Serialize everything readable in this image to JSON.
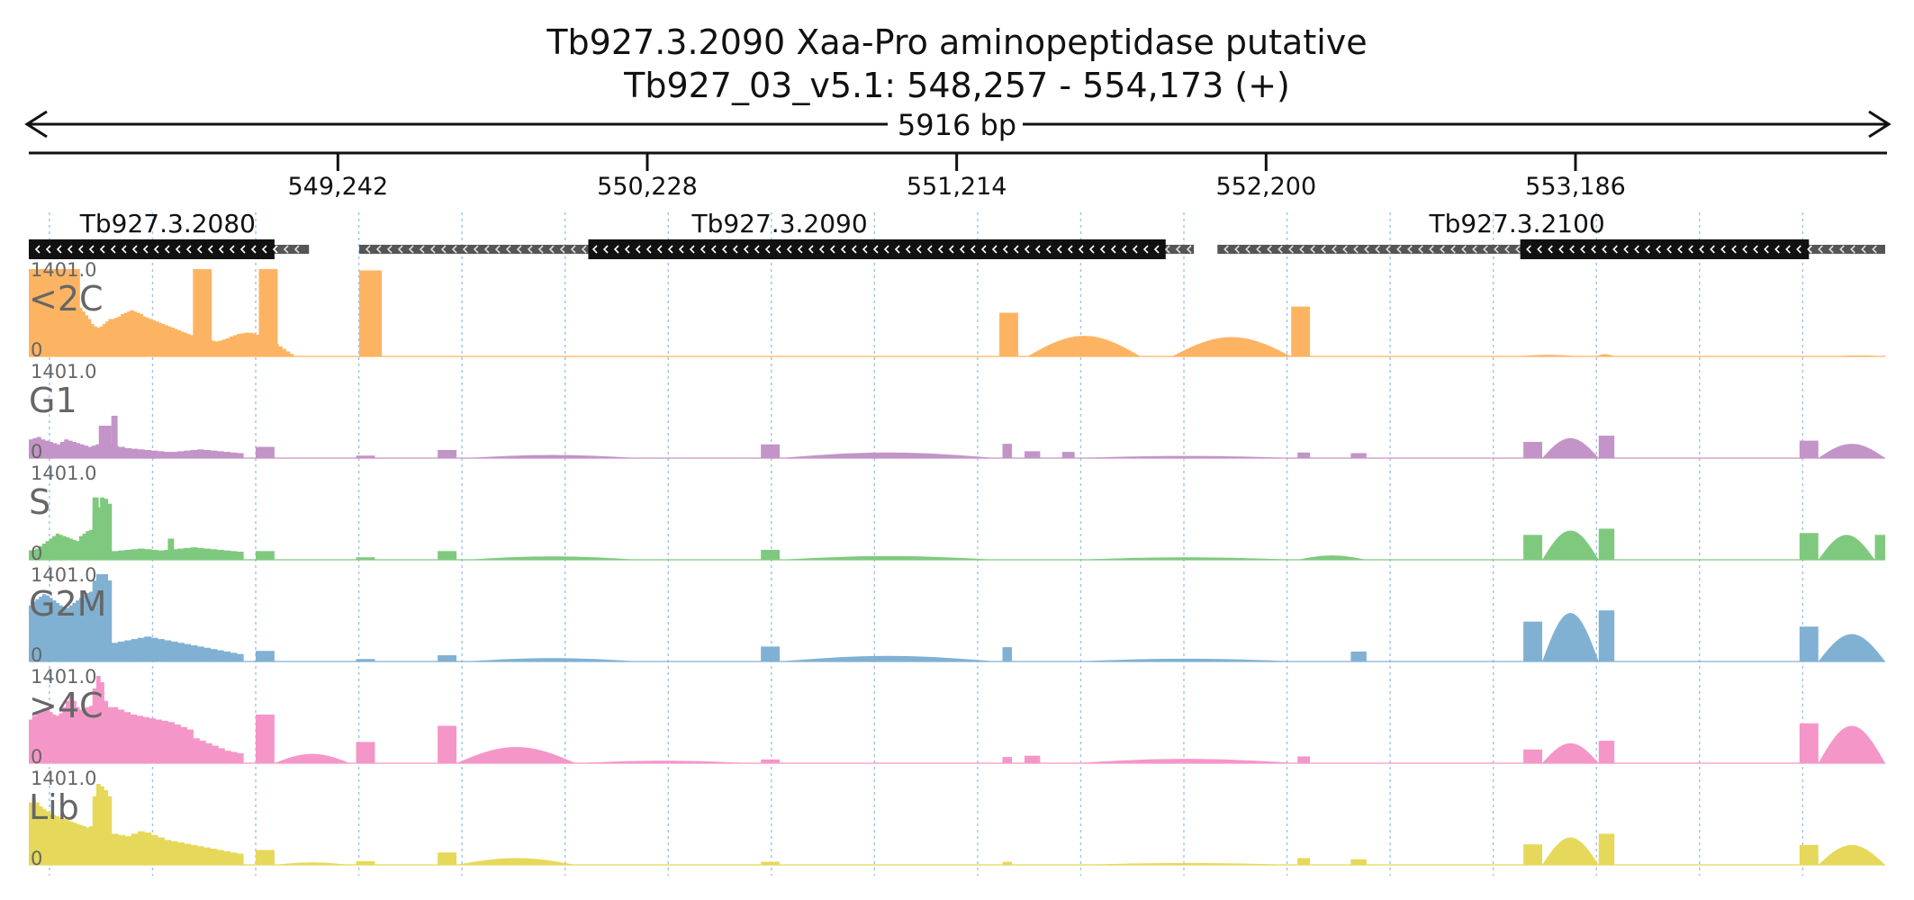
{
  "chart_data": {
    "type": "area",
    "title": "Tb927.3.2090  Xaa-Pro aminopeptidase  putative",
    "subtitle": "Tb927_03_v5.1: 548,257 - 554,173 (+)",
    "span_label": "5916 bp",
    "xlim": [
      548257,
      554173
    ],
    "ticks": [
      {
        "value": 549242,
        "label": "549,242"
      },
      {
        "value": 550228,
        "label": "550,228"
      },
      {
        "value": 551214,
        "label": "551,214"
      },
      {
        "value": 552200,
        "label": "552,200"
      },
      {
        "value": 553186,
        "label": "553,186"
      }
    ],
    "grid_on": true,
    "genes": [
      {
        "name": "Tb927.3.2080",
        "start": 548257,
        "end": 549150,
        "cds_start": 548257,
        "cds_end": 549040,
        "label_at": 548700,
        "strand": "-"
      },
      {
        "name": "Tb927.3.2090",
        "start": 549310,
        "end": 551970,
        "cds_start": 550040,
        "cds_end": 551880,
        "label_at": 550650,
        "strand": "-"
      },
      {
        "name": "Tb927.3.2100",
        "start": 552045,
        "end": 554173,
        "cds_start": 553010,
        "cds_end": 553930,
        "label_at": 553000,
        "strand": "-"
      }
    ],
    "series_scale_max": "1401.0",
    "series_scale_min": "0",
    "series": [
      {
        "name": "<2C",
        "color": "#fdb462",
        "segments": [
          {
            "start": 548257,
            "end": 548520,
            "values": [
              700,
              740,
              760,
              780,
              800,
              830,
              860,
              900,
              960,
              1000,
              1000,
              980,
              960,
              940,
              900,
              860,
              820,
              780,
              720,
              660,
              600,
              520,
              480,
              460,
              480,
              520,
              560,
              600
            ]
          },
          {
            "start": 548520,
            "end": 548660,
            "values": [
              600,
              620,
              640,
              680,
              700,
              720,
              740,
              720,
              700,
              680,
              640,
              620,
              600,
              580
            ]
          },
          {
            "start": 548660,
            "end": 548860,
            "values": [
              560,
              540,
              520,
              500,
              480,
              460,
              440,
              420,
              400,
              380,
              360,
              340,
              320,
              300,
              290,
              280,
              270,
              260,
              250,
              240
            ]
          },
          {
            "start": 548860,
            "end": 549100,
            "values": [
              250,
              270,
              290,
              320,
              340,
              360,
              370,
              380,
              380,
              370,
              350,
              330,
              300,
              270,
              240,
              200,
              160,
              120,
              80,
              40
            ]
          },
          {
            "start": 549370,
            "end": 549380,
            "values": [
              1380
            ]
          }
        ],
        "bars": [
          {
            "start": 548257,
            "end": 548420,
            "value": 1401
          },
          {
            "start": 548780,
            "end": 548840,
            "value": 1401
          },
          {
            "start": 548990,
            "end": 549050,
            "value": 1401
          },
          {
            "start": 549310,
            "end": 549370,
            "value": 1380
          },
          {
            "start": 551350,
            "end": 551410,
            "value": 700
          },
          {
            "start": 552280,
            "end": 552340,
            "value": 800
          }
        ],
        "humps": [
          {
            "start": 551440,
            "end": 551800,
            "peak": 330
          },
          {
            "start": 551900,
            "end": 552280,
            "peak": 310
          },
          {
            "start": 553000,
            "end": 553200,
            "peak": 25
          },
          {
            "start": 553250,
            "end": 553310,
            "peak": 35
          },
          {
            "start": 554000,
            "end": 554173,
            "peak": 15
          }
        ]
      },
      {
        "name": "G1",
        "color": "#c394c7",
        "segments": [
          {
            "start": 548257,
            "end": 548520,
            "values": [
              300,
              320,
              340,
              300,
              280,
              260,
              240,
              220,
              260,
              300,
              280,
              260,
              240,
              220,
              200,
              180,
              200,
              220,
              240,
              200,
              180
            ]
          },
          {
            "start": 548520,
            "end": 548940,
            "values": [
              200,
              180,
              160,
              150,
              140,
              130,
              120,
              110,
              100,
              100,
              110,
              120,
              130,
              140,
              130,
              120,
              110,
              100,
              90,
              80
            ]
          }
        ],
        "bars": [
          {
            "start": 548480,
            "end": 548520,
            "value": 520
          },
          {
            "start": 548520,
            "end": 548540,
            "value": 680
          },
          {
            "start": 548980,
            "end": 549040,
            "value": 180
          },
          {
            "start": 549300,
            "end": 549360,
            "value": 40
          },
          {
            "start": 549560,
            "end": 549620,
            "value": 130
          },
          {
            "start": 550590,
            "end": 550650,
            "value": 220
          },
          {
            "start": 551360,
            "end": 551390,
            "value": 230
          },
          {
            "start": 551430,
            "end": 551480,
            "value": 110
          },
          {
            "start": 551550,
            "end": 551590,
            "value": 100
          },
          {
            "start": 552300,
            "end": 552340,
            "value": 90
          },
          {
            "start": 552470,
            "end": 552520,
            "value": 80
          },
          {
            "start": 553020,
            "end": 553080,
            "value": 260
          },
          {
            "start": 553260,
            "end": 553310,
            "value": 360
          },
          {
            "start": 553900,
            "end": 553960,
            "value": 280
          }
        ],
        "humps": [
          {
            "start": 549650,
            "end": 550200,
            "peak": 50
          },
          {
            "start": 550650,
            "end": 551340,
            "peak": 90
          },
          {
            "start": 551590,
            "end": 552300,
            "peak": 35
          },
          {
            "start": 553080,
            "end": 553260,
            "peak": 320
          },
          {
            "start": 553960,
            "end": 554173,
            "peak": 230
          }
        ]
      },
      {
        "name": "S",
        "color": "#7fc97f",
        "segments": [
          {
            "start": 548257,
            "end": 548460,
            "values": [
              150,
              160,
              180,
              220,
              260,
              300,
              340,
              380,
              420,
              400,
              380,
              360,
              340,
              320,
              300,
              380,
              420,
              460,
              480
            ]
          },
          {
            "start": 548460,
            "end": 548520,
            "values": [
              700,
              840,
              1000,
              980,
              900
            ]
          },
          {
            "start": 548520,
            "end": 548940,
            "values": [
              140,
              150,
              160,
              170,
              180,
              170,
              160,
              150,
              160,
              170,
              180,
              190,
              200,
              190,
              180,
              170,
              160,
              150,
              140,
              130
            ]
          }
        ],
        "bars": [
          {
            "start": 548460,
            "end": 548480,
            "value": 1001
          },
          {
            "start": 548700,
            "end": 548720,
            "value": 340
          },
          {
            "start": 548980,
            "end": 549040,
            "value": 140
          },
          {
            "start": 549300,
            "end": 549360,
            "value": 40
          },
          {
            "start": 549560,
            "end": 549620,
            "value": 140
          },
          {
            "start": 550590,
            "end": 550650,
            "value": 160
          },
          {
            "start": 553020,
            "end": 553080,
            "value": 400
          },
          {
            "start": 553260,
            "end": 553310,
            "value": 500
          },
          {
            "start": 553900,
            "end": 553960,
            "value": 430
          },
          {
            "start": 554140,
            "end": 554173,
            "value": 400
          }
        ],
        "humps": [
          {
            "start": 549650,
            "end": 550200,
            "peak": 55
          },
          {
            "start": 550650,
            "end": 551340,
            "peak": 60
          },
          {
            "start": 551590,
            "end": 552300,
            "peak": 40
          },
          {
            "start": 552300,
            "end": 552520,
            "peak": 70
          },
          {
            "start": 553080,
            "end": 553260,
            "peak": 470
          },
          {
            "start": 553960,
            "end": 554140,
            "peak": 400
          }
        ]
      },
      {
        "name": "G2M",
        "color": "#80b1d3",
        "segments": [
          {
            "start": 548257,
            "end": 548460,
            "values": [
              900,
              960,
              1000,
              1040,
              1080,
              1060,
              1020,
              980,
              940,
              900,
              880,
              860,
              900,
              940,
              980,
              1020,
              1060,
              1100,
              1120
            ]
          },
          {
            "start": 548460,
            "end": 548520,
            "values": [
              1300,
              1401,
              1401,
              1401,
              1300
            ]
          },
          {
            "start": 548520,
            "end": 548940,
            "values": [
              300,
              320,
              340,
              360,
              380,
              400,
              380,
              360,
              340,
              320,
              300,
              280,
              260,
              240,
              220,
              200,
              180,
              160,
              140,
              120
            ]
          }
        ],
        "bars": [
          {
            "start": 548980,
            "end": 549040,
            "value": 170
          },
          {
            "start": 549300,
            "end": 549360,
            "value": 40
          },
          {
            "start": 549560,
            "end": 549620,
            "value": 100
          },
          {
            "start": 550590,
            "end": 550650,
            "value": 240
          },
          {
            "start": 551360,
            "end": 551390,
            "value": 230
          },
          {
            "start": 552470,
            "end": 552520,
            "value": 160
          },
          {
            "start": 553020,
            "end": 553080,
            "value": 640
          },
          {
            "start": 553260,
            "end": 553310,
            "value": 820
          },
          {
            "start": 553900,
            "end": 553960,
            "value": 560
          }
        ],
        "humps": [
          {
            "start": 549650,
            "end": 550200,
            "peak": 55
          },
          {
            "start": 550650,
            "end": 551340,
            "peak": 90
          },
          {
            "start": 551590,
            "end": 552300,
            "peak": 45
          },
          {
            "start": 553080,
            "end": 553260,
            "peak": 780
          },
          {
            "start": 553960,
            "end": 554173,
            "peak": 440
          }
        ]
      },
      {
        "name": ">4C",
        "color": "#f596c8",
        "segments": [
          {
            "start": 548257,
            "end": 548460,
            "values": [
              700,
              760,
              800,
              840,
              880,
              860,
              820,
              780,
              760,
              800,
              900,
              1000,
              1080,
              1000,
              900,
              860,
              880,
              900,
              920
            ]
          },
          {
            "start": 548460,
            "end": 548520,
            "values": [
              1200,
              1401,
              1300,
              1000,
              900
            ]
          },
          {
            "start": 548520,
            "end": 548780,
            "values": [
              900,
              860,
              820,
              780,
              760,
              740,
              720,
              700,
              680,
              660,
              620,
              580,
              540
            ]
          },
          {
            "start": 548780,
            "end": 548940,
            "values": [
              400,
              360,
              320,
              280,
              240,
              200,
              180,
              160
            ]
          }
        ],
        "bars": [
          {
            "start": 548980,
            "end": 549040,
            "value": 780
          },
          {
            "start": 549300,
            "end": 549360,
            "value": 340
          },
          {
            "start": 549560,
            "end": 549620,
            "value": 600
          },
          {
            "start": 550590,
            "end": 550650,
            "value": 60
          },
          {
            "start": 551360,
            "end": 551390,
            "value": 100
          },
          {
            "start": 551430,
            "end": 551480,
            "value": 120
          },
          {
            "start": 552300,
            "end": 552340,
            "value": 110
          },
          {
            "start": 553020,
            "end": 553080,
            "value": 220
          },
          {
            "start": 553260,
            "end": 553310,
            "value": 360
          },
          {
            "start": 553900,
            "end": 553960,
            "value": 640
          }
        ],
        "humps": [
          {
            "start": 549040,
            "end": 549280,
            "peak": 150
          },
          {
            "start": 549620,
            "end": 550000,
            "peak": 260
          },
          {
            "start": 550000,
            "end": 550560,
            "peak": 40
          },
          {
            "start": 551590,
            "end": 552300,
            "peak": 70
          },
          {
            "start": 553080,
            "end": 553260,
            "peak": 320
          },
          {
            "start": 553960,
            "end": 554173,
            "peak": 600
          }
        ]
      },
      {
        "name": "Lib",
        "color": "#e6d85a",
        "segments": [
          {
            "start": 548257,
            "end": 548460,
            "values": [
              1000,
              1060,
              1000,
              940,
              900,
              860,
              820,
              800,
              780,
              760,
              740,
              720,
              700,
              680,
              660,
              640,
              620,
              600,
              620
            ]
          },
          {
            "start": 548460,
            "end": 548520,
            "values": [
              1100,
              1300,
              1260,
              1200,
              1100
            ]
          },
          {
            "start": 548520,
            "end": 548940,
            "values": [
              500,
              480,
              460,
              500,
              540,
              520,
              480,
              440,
              400,
              380,
              360,
              340,
              320,
              300,
              280,
              260,
              240,
              220,
              200,
              180
            ]
          }
        ],
        "bars": [
          {
            "start": 548980,
            "end": 549040,
            "value": 240
          },
          {
            "start": 549300,
            "end": 549360,
            "value": 60
          },
          {
            "start": 549560,
            "end": 549620,
            "value": 200
          },
          {
            "start": 550590,
            "end": 550650,
            "value": 50
          },
          {
            "start": 551360,
            "end": 551390,
            "value": 50
          },
          {
            "start": 552300,
            "end": 552340,
            "value": 110
          },
          {
            "start": 552470,
            "end": 552520,
            "value": 90
          },
          {
            "start": 553020,
            "end": 553080,
            "value": 330
          },
          {
            "start": 553260,
            "end": 553310,
            "value": 500
          },
          {
            "start": 553900,
            "end": 553960,
            "value": 320
          }
        ],
        "humps": [
          {
            "start": 549040,
            "end": 549280,
            "peak": 40
          },
          {
            "start": 549620,
            "end": 550000,
            "peak": 110
          },
          {
            "start": 551590,
            "end": 552300,
            "peak": 30
          },
          {
            "start": 553080,
            "end": 553260,
            "peak": 440
          },
          {
            "start": 553960,
            "end": 554173,
            "peak": 320
          }
        ]
      }
    ]
  }
}
